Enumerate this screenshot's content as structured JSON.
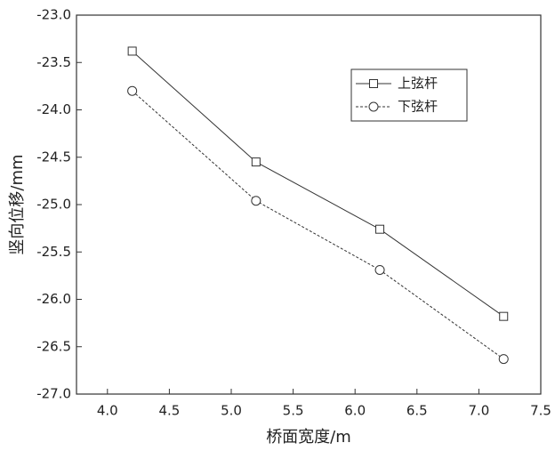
{
  "chart_data": {
    "type": "line",
    "x_label": "桥面宽度/m",
    "y_label": "竖向位移/mm",
    "x": [
      4.2,
      5.2,
      6.2,
      7.2
    ],
    "series": [
      {
        "name": "上弦杆",
        "color": "#333333",
        "marker": "square",
        "dashed": false,
        "values": [
          -23.38,
          -24.55,
          -25.26,
          -26.18
        ]
      },
      {
        "name": "下弦杆",
        "color": "#333333",
        "marker": "circle",
        "dashed": true,
        "values": [
          -23.8,
          -24.96,
          -25.69,
          -26.63
        ]
      }
    ],
    "xlim": [
      3.75,
      7.5
    ],
    "xticks": [
      {
        "value": 4,
        "label": "4.0"
      },
      4.5,
      {
        "value": 5,
        "label": "5.0"
      },
      5.5,
      {
        "value": 6,
        "label": "6.0"
      },
      6.5,
      {
        "value": 7,
        "label": "7.0"
      },
      7.5
    ],
    "ylim": [
      -27,
      -23
    ],
    "yticks": [
      {
        "value": -27,
        "label": "-27.0"
      },
      -26.5,
      {
        "value": -26,
        "label": "-26.0"
      },
      -25.5,
      {
        "value": -25,
        "label": "-25.0"
      },
      -24.5,
      {
        "value": -24,
        "label": "-24.0"
      },
      -23.5,
      {
        "value": -23,
        "label": "-23.0"
      }
    ],
    "legend": "upper right"
  }
}
